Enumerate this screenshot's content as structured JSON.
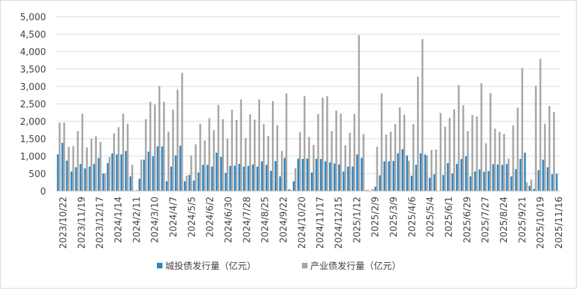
{
  "chart_data": {
    "type": "bar",
    "ylim": [
      0,
      5000
    ],
    "y_ticks": [
      "0",
      "500",
      "1,000",
      "1,500",
      "2,000",
      "2,500",
      "3,000",
      "3,500",
      "4,000",
      "4,500",
      "5,000"
    ],
    "x_tick_labels": [
      "2023/10/22",
      "2023/11/19",
      "2023/12/17",
      "2024/1/14",
      "2024/2/11",
      "2024/3/10",
      "2024/4/7",
      "2024/5/5",
      "2024/6/2",
      "2024/6/30",
      "2024/7/28",
      "2024/8/25",
      "2024/9/22",
      "2024/10/20",
      "2024/11/17",
      "2024/12/15",
      "2025/1/12",
      "2025/2/9",
      "2025/3/9",
      "2025/4/6",
      "2025/5/4",
      "2025/6/1",
      "2025/6/29",
      "2025/7/27",
      "2025/8/24",
      "2025/9/21",
      "2025/10/19",
      "2025/11/16"
    ],
    "series": [
      {
        "name": "城投债发行量（亿元）",
        "color": "#2E86C1",
        "values": [
          1050,
          1380,
          870,
          560,
          680,
          780,
          650,
          700,
          780,
          950,
          500,
          800,
          1080,
          1050,
          1050,
          1150,
          420,
          0,
          350,
          900,
          1130,
          1000,
          1280,
          1280,
          280,
          700,
          1020,
          1300,
          280,
          460,
          300,
          530,
          750,
          750,
          700,
          1100,
          980,
          520,
          720,
          730,
          780,
          700,
          720,
          760,
          700,
          850,
          750,
          580,
          860,
          420,
          950,
          50,
          280,
          930,
          920,
          930,
          530,
          920,
          920,
          850,
          820,
          790,
          760,
          560,
          700,
          700,
          1050,
          950,
          20,
          10,
          120,
          450,
          850,
          850,
          860,
          1080,
          1200,
          1020,
          440,
          750,
          1080,
          1050,
          380,
          480,
          10,
          460,
          800,
          500,
          780,
          920,
          1000,
          420,
          560,
          620,
          550,
          570,
          770,
          760,
          750,
          780,
          420,
          630,
          920,
          1100,
          150,
          60,
          600,
          900,
          680,
          480,
          490
        ]
      },
      {
        "name": "产业债发行量（亿元）",
        "color": "#A6A6A6",
        "values": [
          1960,
          1960,
          1270,
          1290,
          1720,
          2220,
          1250,
          1500,
          1570,
          1410,
          510,
          980,
          1650,
          1830,
          2220,
          1930,
          750,
          30,
          900,
          2060,
          2560,
          2480,
          3010,
          2560,
          1700,
          2330,
          2910,
          3390,
          440,
          1020,
          1340,
          1930,
          1450,
          2090,
          1750,
          2470,
          2060,
          1500,
          2330,
          2040,
          2630,
          1520,
          2200,
          2050,
          2630,
          1920,
          1580,
          2580,
          1890,
          1150,
          2800,
          30,
          650,
          1690,
          2730,
          1550,
          1320,
          2210,
          2680,
          2720,
          1720,
          2310,
          2220,
          1310,
          1670,
          2210,
          4470,
          1630,
          30,
          60,
          1270,
          2800,
          1620,
          1700,
          1920,
          2400,
          2190,
          870,
          1920,
          3280,
          4360,
          1020,
          1180,
          1190,
          2240,
          1850,
          2100,
          2350,
          3040,
          2460,
          1720,
          2180,
          2140,
          3090,
          1370,
          2810,
          1790,
          1700,
          1640,
          930,
          1880,
          2390,
          3530,
          250,
          330,
          3020,
          3790,
          1930,
          2440,
          2270
        ]
      }
    ]
  }
}
